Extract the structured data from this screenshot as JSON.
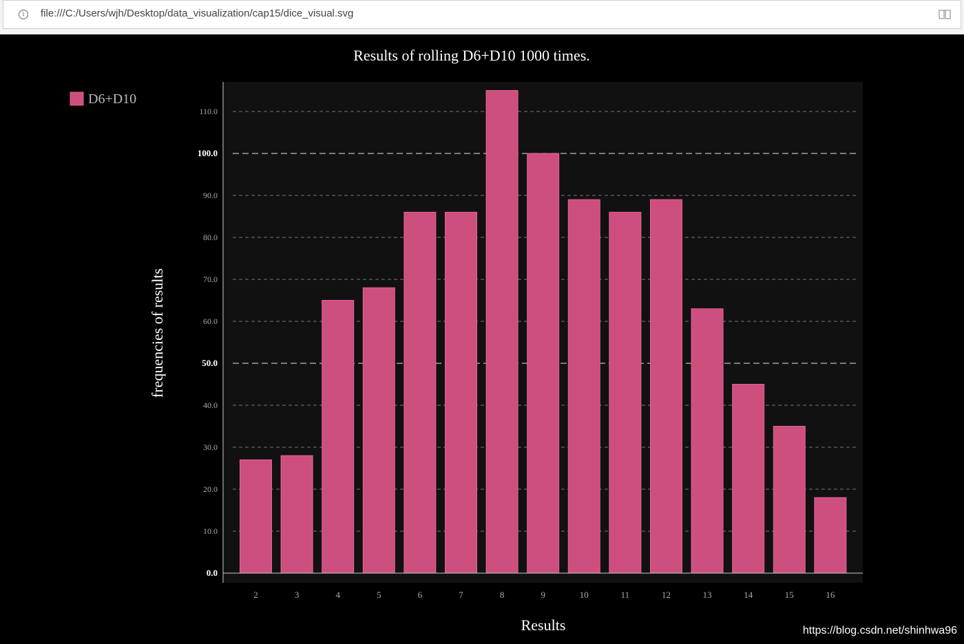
{
  "browser": {
    "url": "file:///C:/Users/wjh/Desktop/data_visualization/cap15/dice_visual.svg"
  },
  "colors": {
    "background": "#000000",
    "plot_background": "#111111",
    "bar_fill": "#cd4f7e",
    "bar_stroke": "#e8609a",
    "text": "#ffffff",
    "tick_text": "#aaaaaa"
  },
  "watermark": "https://blog.csdn.net/shinhwa96",
  "chart_data": {
    "type": "bar",
    "title": "Results of rolling D6+D10 1000 times.",
    "xlabel": "Results",
    "ylabel": "frequencies of results",
    "categories": [
      "2",
      "3",
      "4",
      "5",
      "6",
      "7",
      "8",
      "9",
      "10",
      "11",
      "12",
      "13",
      "14",
      "15",
      "16"
    ],
    "series": [
      {
        "name": "D6+D10",
        "values": [
          27,
          28,
          65,
          68,
          86,
          86,
          115,
          100,
          89,
          86,
          89,
          63,
          45,
          35,
          18
        ]
      }
    ],
    "yticks": [
      "0.0",
      "10.0",
      "20.0",
      "30.0",
      "40.0",
      "50.0",
      "60.0",
      "70.0",
      "80.0",
      "90.0",
      "100.0",
      "110.0"
    ],
    "ytick_values": [
      0,
      10,
      20,
      30,
      40,
      50,
      60,
      70,
      80,
      90,
      100,
      110
    ],
    "major_yticks": [
      0,
      50,
      100
    ],
    "ylim": [
      0,
      118.3
    ],
    "grid": true,
    "legend": "top-left"
  }
}
